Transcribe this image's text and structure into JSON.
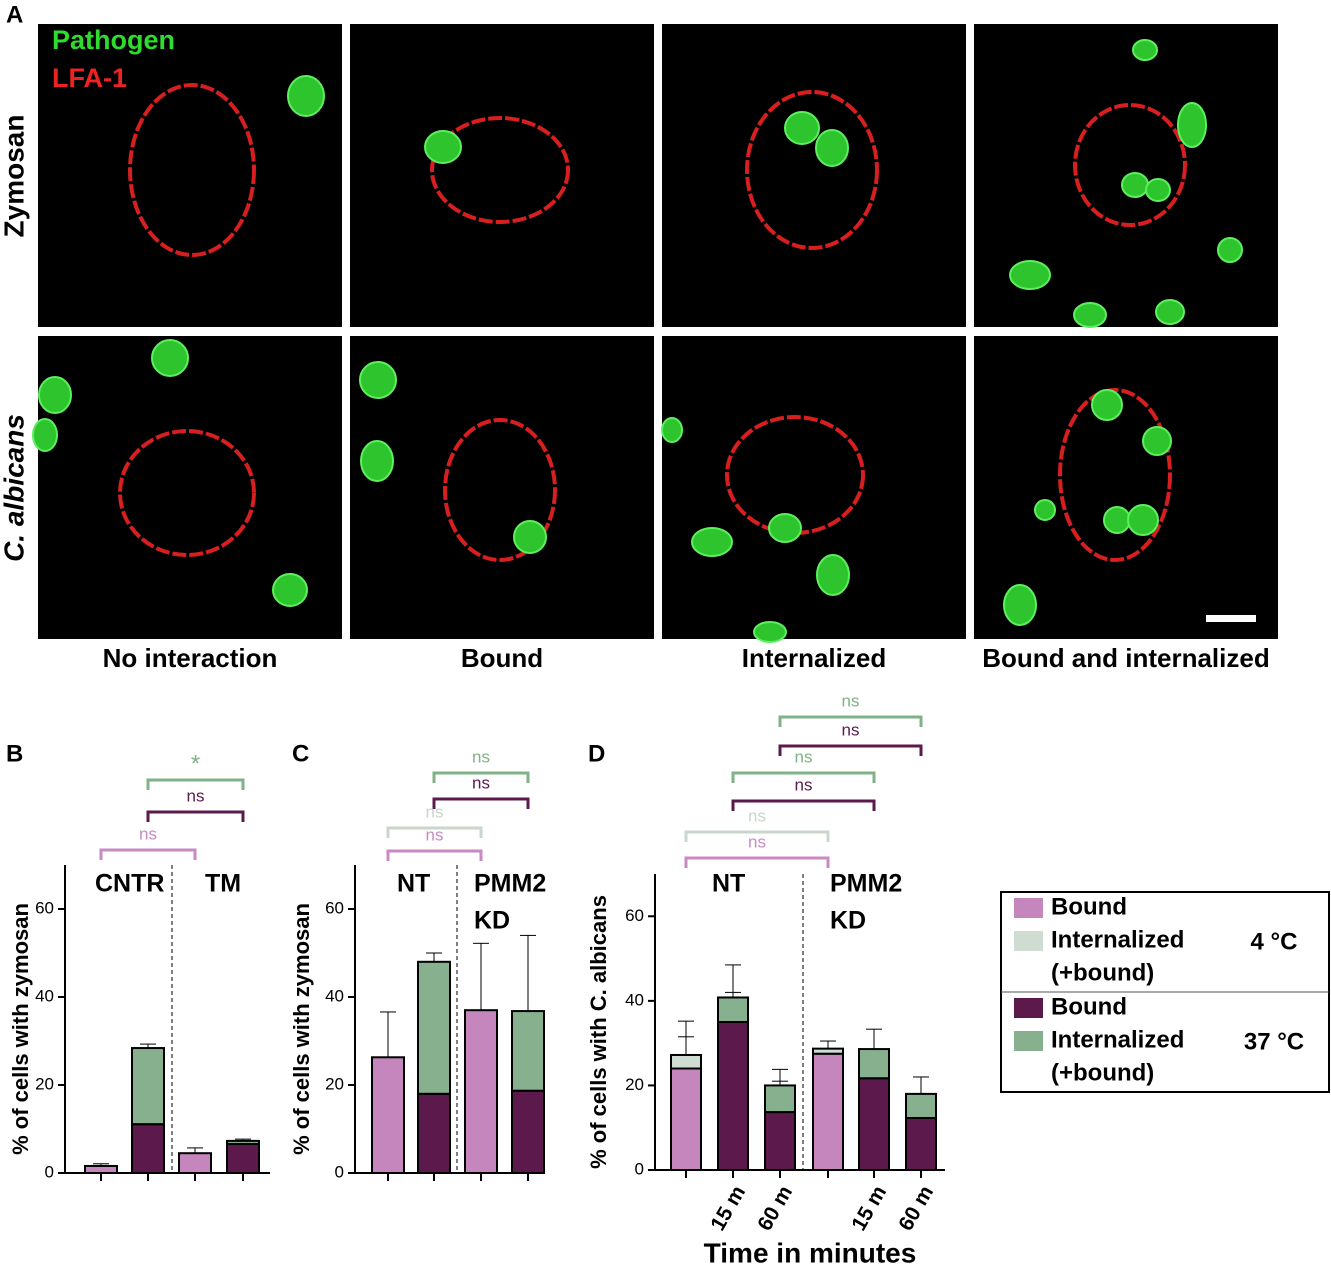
{
  "panel_a": {
    "panel": "A",
    "channels": [
      {
        "label": "Pathogen",
        "color": "#2edc2e"
      },
      {
        "label": "LFA-1",
        "color": "#ee2222"
      }
    ],
    "rows": [
      "Zymosan",
      "C. albicans"
    ],
    "columns": [
      "No interaction",
      "Bound",
      "Internalized",
      "Bound and internalized"
    ]
  },
  "chart_data": [
    {
      "type": "bar",
      "stacked": true,
      "panel": "B",
      "ylabel": "% of cells with zymosan",
      "categories": [
        null,
        null,
        null,
        null
      ],
      "group_labels": [
        [
          "CNTR"
        ],
        [
          "TM"
        ]
      ],
      "ylim": [
        0,
        70
      ],
      "yticks": [
        0,
        20,
        40,
        60
      ],
      "series": [
        {
          "color": "#c486bd",
          "values": [
            1.6,
            null,
            4.5,
            null
          ],
          "errors": [
            0.5,
            null,
            1.2,
            null
          ]
        },
        {
          "color": "#5b1a4b",
          "values": [
            null,
            11.1,
            null,
            6.6
          ],
          "errors": [
            null,
            5.5,
            null,
            0.4
          ]
        },
        {
          "color": "#86b08e",
          "values": [
            null,
            17.3,
            null,
            0.7
          ],
          "errors": [
            null,
            0.9,
            null,
            0.4
          ]
        }
      ],
      "brackets": [
        {
          "from": 1,
          "to": 3,
          "label": "*",
          "color": "#7fb287"
        },
        {
          "from": 1,
          "to": 3,
          "label": "ns",
          "color": "#5b1a4b"
        },
        {
          "from": 0,
          "to": 2,
          "label": "ns",
          "color": "#c98ac4"
        }
      ]
    },
    {
      "type": "bar",
      "stacked": true,
      "panel": "C",
      "ylabel": "% of cells with zymosan",
      "categories": [
        null,
        null,
        null,
        null
      ],
      "group_labels": [
        [
          "NT"
        ],
        [
          "PMM2",
          "KD"
        ]
      ],
      "ylim": [
        0,
        70
      ],
      "yticks": [
        0,
        20,
        40,
        60
      ],
      "series": [
        {
          "color": "#c486bd",
          "values": [
            26.3,
            null,
            37,
            null
          ],
          "errors": [
            10.3,
            null,
            15.2,
            null
          ]
        },
        {
          "color": "#5b1a4b",
          "values": [
            null,
            18,
            null,
            18.7
          ],
          "errors": [
            null,
            13,
            null,
            8.6
          ]
        },
        {
          "color": "#86b08e",
          "values": [
            null,
            30,
            null,
            18.1
          ],
          "errors": [
            null,
            2,
            null,
            17.2
          ]
        }
      ],
      "brackets": [
        {
          "from": 1,
          "to": 3,
          "label": "ns",
          "color": "#7fb287"
        },
        {
          "from": 1,
          "to": 3,
          "label": "ns",
          "color": "#5b1a4b"
        },
        {
          "from": 0,
          "to": 2,
          "label": "ns",
          "color": "#c8d6cc"
        },
        {
          "from": 0,
          "to": 2,
          "label": "ns",
          "color": "#c98ac4"
        }
      ]
    },
    {
      "type": "bar",
      "stacked": true,
      "panel": "D",
      "ylabel": "% of cells with C. albicans",
      "xlabel": "Time in minutes",
      "categories": [
        null,
        "15 m",
        "60 m",
        null,
        "15 m",
        "60 m"
      ],
      "group_labels": [
        [
          "NT"
        ],
        [
          "PMM2",
          "KD"
        ]
      ],
      "ylim": [
        0,
        70
      ],
      "yticks": [
        0,
        20,
        40,
        60
      ],
      "series": [
        {
          "color": "#c486bd",
          "values": [
            24,
            null,
            null,
            27.5,
            null,
            null
          ],
          "errors": [
            7.5,
            null,
            null,
            1,
            null,
            null
          ]
        },
        {
          "color": "#cfdcd2",
          "values": [
            3.2,
            null,
            null,
            1.2,
            null,
            null
          ],
          "errors": [
            8,
            null,
            null,
            1.8,
            null,
            null
          ]
        },
        {
          "color": "#5b1a4b",
          "values": [
            null,
            35,
            13.7,
            null,
            21.7,
            12.3
          ],
          "errors": [
            null,
            7,
            7.3,
            null,
            3.8,
            1.2
          ]
        },
        {
          "color": "#86b08e",
          "values": [
            null,
            5.8,
            6.3,
            null,
            6.9,
            5.7
          ],
          "errors": [
            null,
            7.7,
            3.8,
            null,
            4.7,
            4
          ]
        }
      ],
      "brackets": [
        {
          "from": 2,
          "to": 5,
          "label": "ns",
          "color": "#7fb287"
        },
        {
          "from": 2,
          "to": 5,
          "label": "ns",
          "color": "#5b1a4b"
        },
        {
          "from": 1,
          "to": 4,
          "label": "ns",
          "color": "#7fb287"
        },
        {
          "from": 1,
          "to": 4,
          "label": "ns",
          "color": "#5b1a4b"
        },
        {
          "from": 0,
          "to": 3,
          "label": "ns",
          "color": "#c8d6cc"
        },
        {
          "from": 0,
          "to": 3,
          "label": "ns",
          "color": "#c98ac4"
        }
      ]
    }
  ],
  "legend": {
    "groups": [
      {
        "label": "4 °C",
        "entries": [
          {
            "label": [
              "Bound"
            ],
            "color": "#c486bd"
          },
          {
            "label": [
              "Internalized",
              "(+bound)"
            ],
            "color": "#cfdcd2"
          }
        ]
      },
      {
        "label": "37 °C",
        "entries": [
          {
            "label": [
              "Bound"
            ],
            "color": "#5b1a4b"
          },
          {
            "label": [
              "Internalized",
              "(+bound)"
            ],
            "color": "#86b08e"
          }
        ]
      }
    ]
  }
}
